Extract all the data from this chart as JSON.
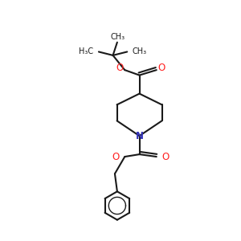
{
  "background_color": "#ffffff",
  "bond_color": "#1a1a1a",
  "oxygen_color": "#ff2020",
  "nitrogen_color": "#3333bb",
  "line_width": 1.5,
  "figsize": [
    3.0,
    3.0
  ],
  "dpi": 100,
  "xlim": [
    0,
    10
  ],
  "ylim": [
    0,
    10
  ]
}
